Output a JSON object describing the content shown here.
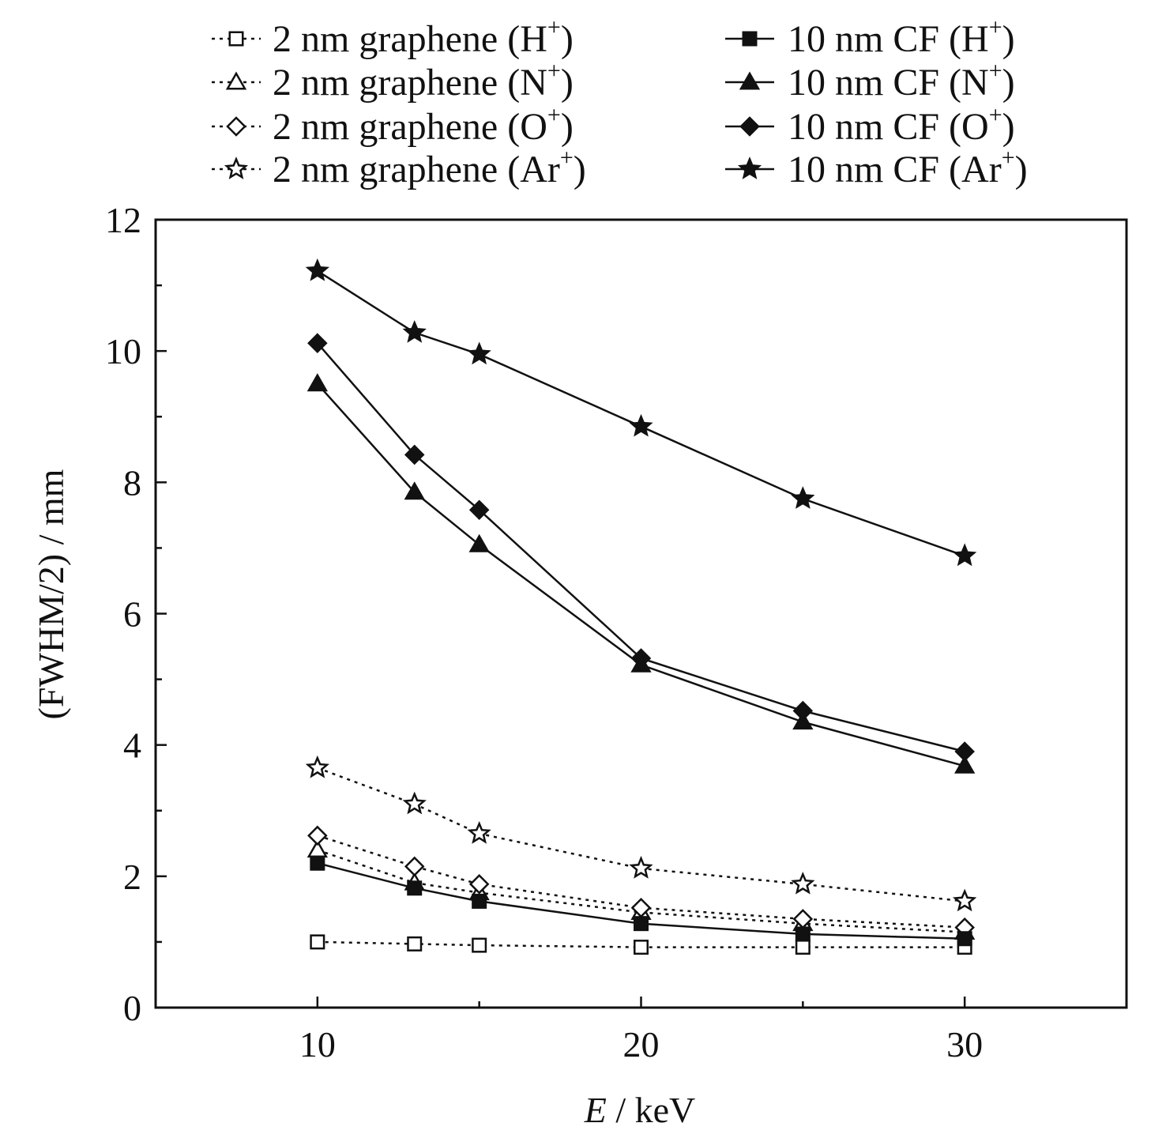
{
  "chart_data": {
    "type": "line",
    "xlabel": {
      "var": "E",
      "unit": " / keV"
    },
    "ylabel": "(FWHM/2) / mm",
    "xlim": [
      5,
      35
    ],
    "ylim": [
      0,
      12
    ],
    "xticks": [
      10,
      20,
      30
    ],
    "yticks": [
      0,
      2,
      4,
      6,
      8,
      10,
      12
    ],
    "grid": false,
    "legend_position": "top",
    "x": [
      10,
      13,
      15,
      20,
      25,
      30
    ],
    "series": [
      {
        "name": "2 nm graphene (H+)",
        "label_main": "2 nm graphene (H",
        "label_sup": "+",
        "label_end": ")",
        "marker": "square",
        "filled": false,
        "dashed": true,
        "values": [
          1.0,
          0.97,
          0.95,
          0.92,
          0.92,
          0.92
        ]
      },
      {
        "name": "2 nm graphene (N+)",
        "label_main": "2 nm graphene (N",
        "label_sup": "+",
        "label_end": ")",
        "marker": "triangle",
        "filled": false,
        "dashed": true,
        "values": [
          2.4,
          1.9,
          1.75,
          1.45,
          1.28,
          1.15
        ]
      },
      {
        "name": "2 nm graphene (O+)",
        "label_main": "2 nm graphene (O",
        "label_sup": "+",
        "label_end": ")",
        "marker": "diamond",
        "filled": false,
        "dashed": true,
        "values": [
          2.62,
          2.15,
          1.88,
          1.52,
          1.35,
          1.22
        ]
      },
      {
        "name": "2 nm graphene (Ar+)",
        "label_main": "2 nm graphene (Ar",
        "label_sup": "+",
        "label_end": ")",
        "marker": "star",
        "filled": false,
        "dashed": true,
        "values": [
          3.65,
          3.1,
          2.65,
          2.12,
          1.88,
          1.62
        ]
      },
      {
        "name": "10 nm CF (H+)",
        "label_main": "10 nm CF (H",
        "label_sup": "+",
        "label_end": ")",
        "marker": "square",
        "filled": true,
        "dashed": false,
        "values": [
          2.2,
          1.82,
          1.62,
          1.28,
          1.12,
          1.05
        ]
      },
      {
        "name": "10 nm CF (N+)",
        "label_main": "10 nm CF (N",
        "label_sup": "+",
        "label_end": ")",
        "marker": "triangle",
        "filled": true,
        "dashed": false,
        "values": [
          9.5,
          7.85,
          7.05,
          5.22,
          4.35,
          3.68
        ]
      },
      {
        "name": "10 nm CF (O+)",
        "label_main": "10 nm CF (O",
        "label_sup": "+",
        "label_end": ")",
        "marker": "diamond",
        "filled": true,
        "dashed": false,
        "values": [
          10.12,
          8.42,
          7.58,
          5.32,
          4.52,
          3.9
        ]
      },
      {
        "name": "10 nm CF (Ar+)",
        "label_main": "10 nm CF (Ar",
        "label_sup": "+",
        "label_end": ")",
        "marker": "star",
        "filled": true,
        "dashed": false,
        "values": [
          11.22,
          10.28,
          9.95,
          8.85,
          7.75,
          6.88
        ]
      }
    ]
  }
}
